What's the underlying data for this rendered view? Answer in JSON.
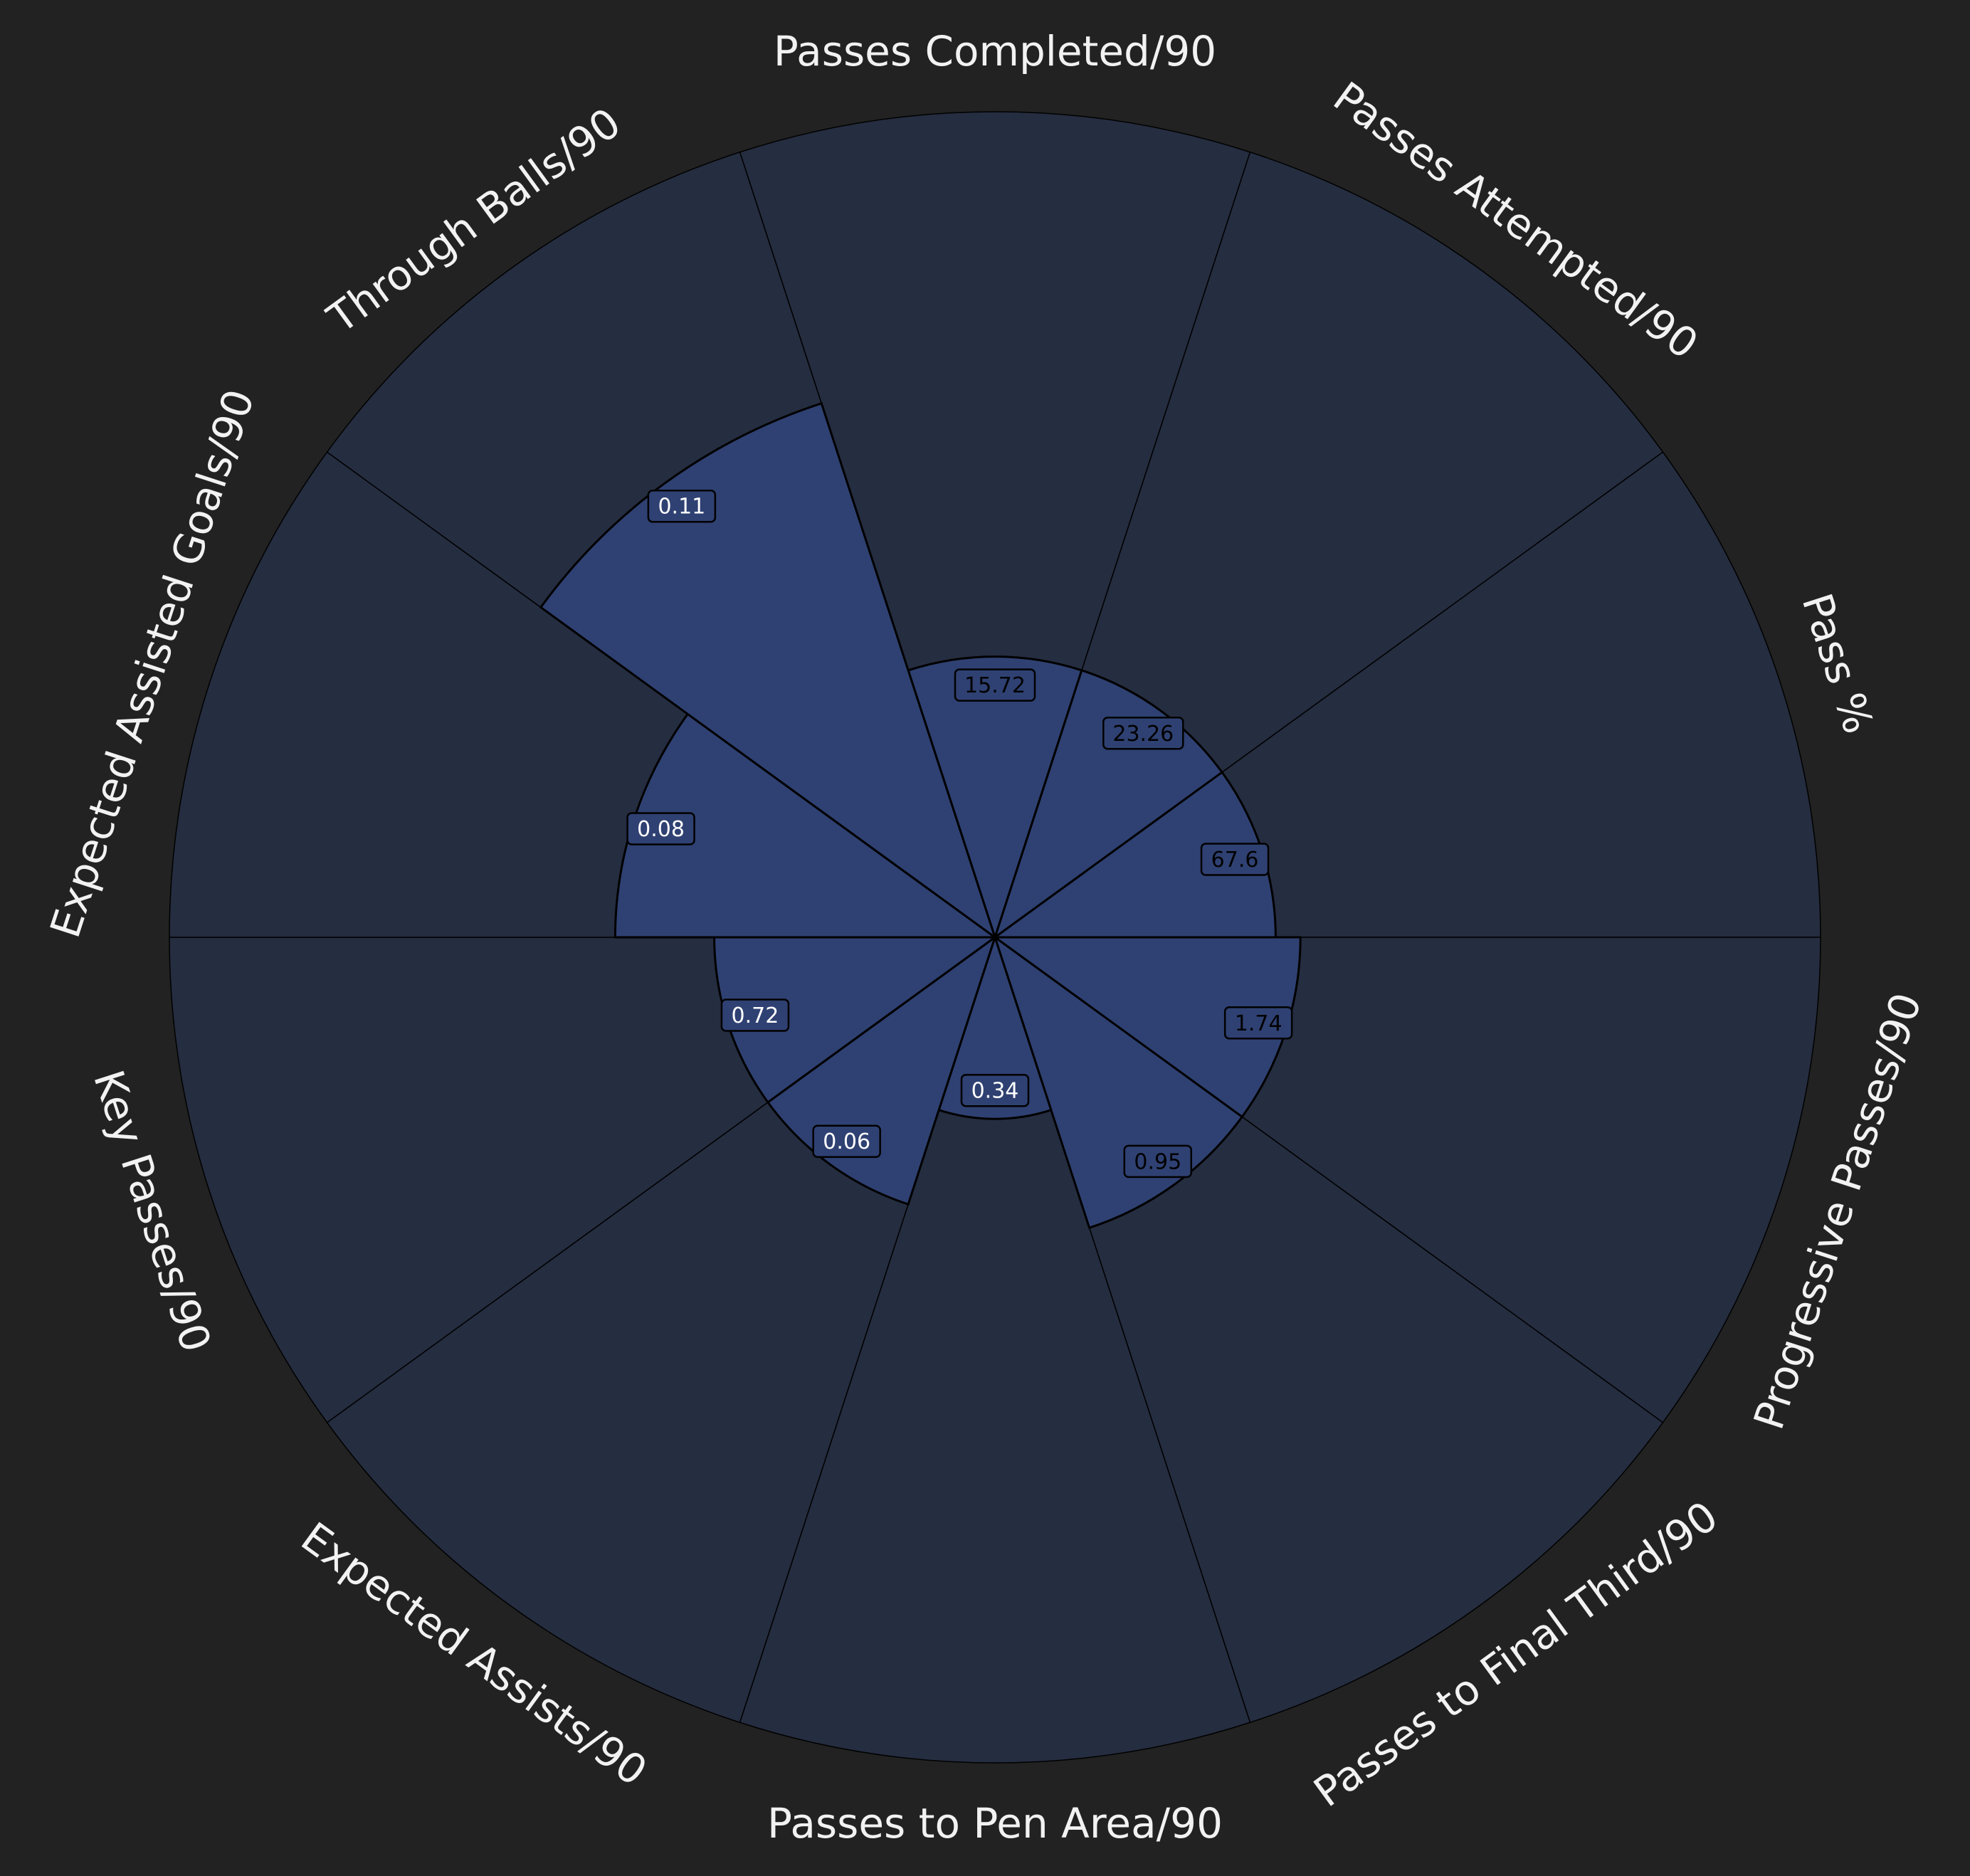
{
  "colors": {
    "background": "#222222",
    "slice_background": "#252d40",
    "slice_fill": "#2f4172",
    "edge": "#000000",
    "label_text": "#f2f2f2",
    "value_box_fill": "#2f4172",
    "value_text_light": "#ffffff",
    "value_text_dark": "#000000"
  },
  "chart_data": {
    "type": "pizza",
    "title": "",
    "start_angle_deg": 90,
    "direction": "clockwise",
    "value_range": [
      0,
      100
    ],
    "grid": false,
    "legend": "none",
    "slices": [
      {
        "parameter": "Passes Completed/90",
        "value_label": "15.72",
        "percentile": 34,
        "value_text_color": "dark"
      },
      {
        "parameter": "Passes Attempted/90",
        "value_label": "23.26",
        "percentile": 34,
        "value_text_color": "dark"
      },
      {
        "parameter": "Pass %",
        "value_label": "67.6",
        "percentile": 34,
        "value_text_color": "dark"
      },
      {
        "parameter": "Progressive Passes/90",
        "value_label": "1.74",
        "percentile": 37,
        "value_text_color": "dark"
      },
      {
        "parameter": "Passes to Final Third/90",
        "value_label": "0.95",
        "percentile": 37,
        "value_text_color": "dark"
      },
      {
        "parameter": "Passes to Pen Area/90",
        "value_label": "0.34",
        "percentile": 22,
        "value_text_color": "light"
      },
      {
        "parameter": "Expected Assists/90",
        "value_label": "0.06",
        "percentile": 34,
        "value_text_color": "light"
      },
      {
        "parameter": "Key Passes/90",
        "value_label": "0.72",
        "percentile": 34,
        "value_text_color": "light"
      },
      {
        "parameter": "Expected Assisted Goals/90",
        "value_label": "0.08",
        "percentile": 46,
        "value_text_color": "light"
      },
      {
        "parameter": "Through Balls/90",
        "value_label": "0.11",
        "percentile": 68,
        "value_text_color": "light"
      }
    ]
  }
}
